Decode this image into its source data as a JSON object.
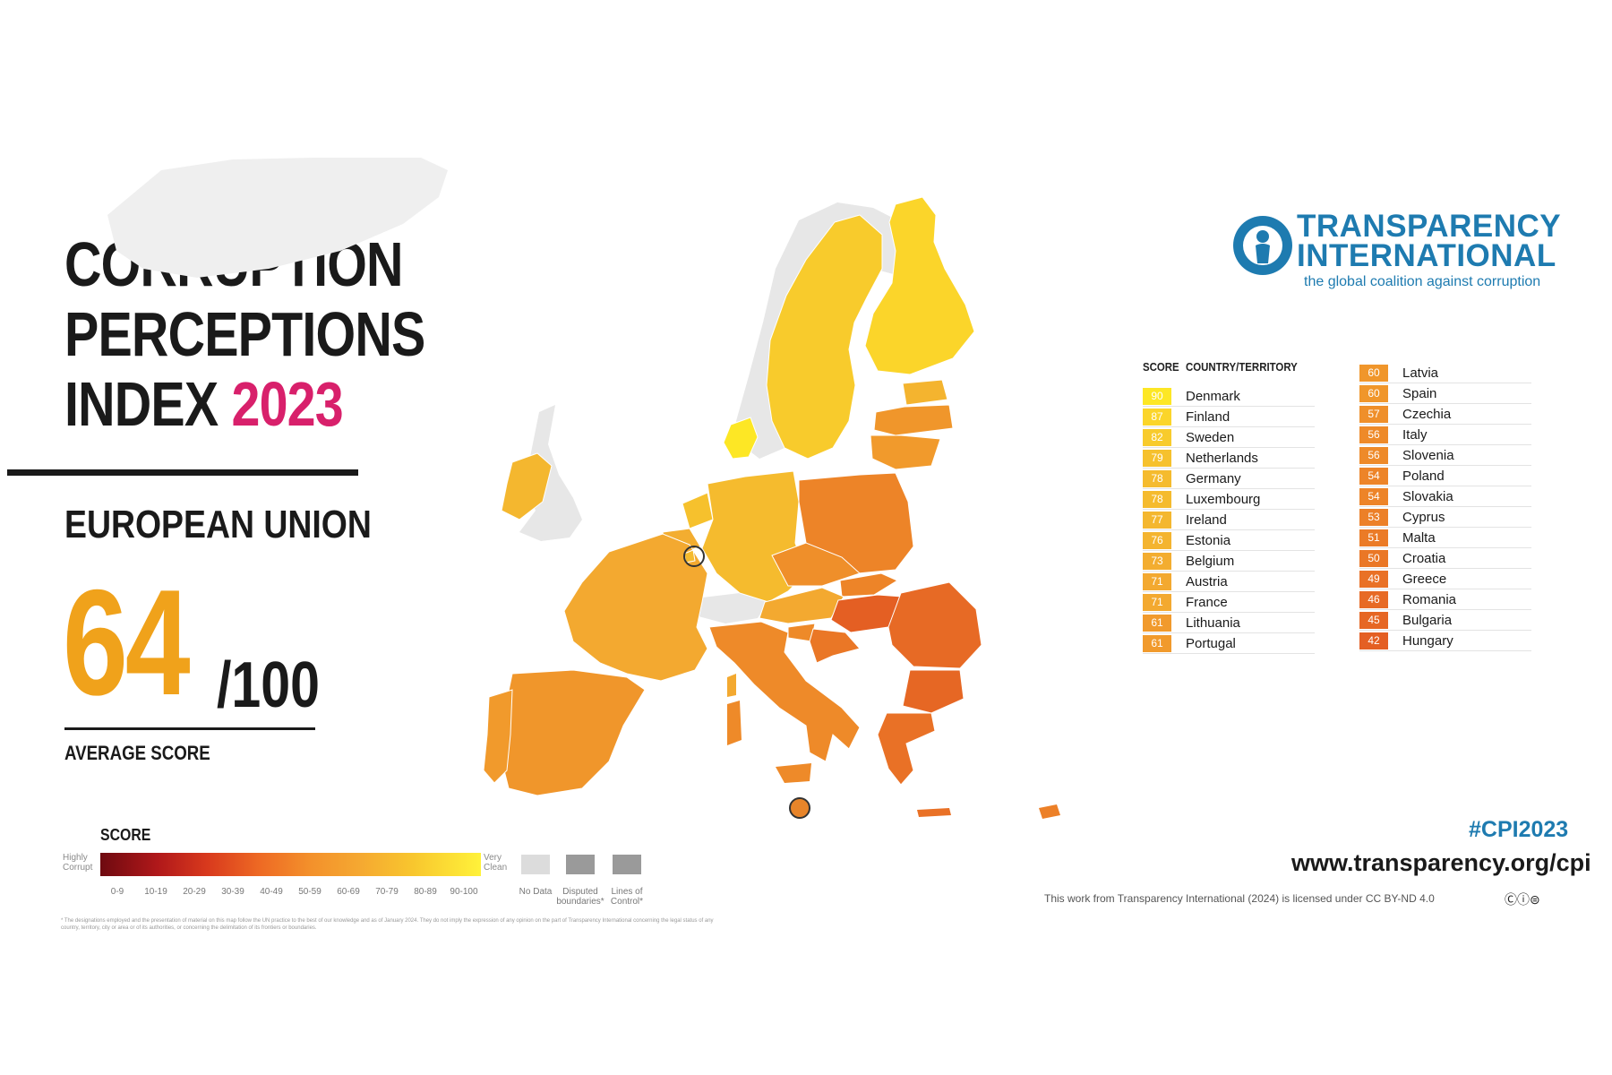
{
  "title": {
    "line1": "CORRUPTION",
    "line2": "PERCEPTIONS",
    "line3_prefix": "INDEX ",
    "line3_year": "2023"
  },
  "region": "EUROPEAN UNION",
  "average": {
    "score": "64",
    "max": "/100",
    "label": "AVERAGE SCORE"
  },
  "legend": {
    "title": "SCORE",
    "low_label": "Highly Corrupt",
    "high_label": "Very Clean",
    "ticks": [
      "0-9",
      "10-19",
      "20-29",
      "30-39",
      "40-49",
      "50-59",
      "60-69",
      "70-79",
      "80-89",
      "90-100"
    ],
    "no_data": "No Data",
    "disputed": "Disputed boundaries*",
    "lines_of_control": "Lines of Control*"
  },
  "brand": {
    "line1": "TRANSPARENCY",
    "line2": "INTERNATIONAL",
    "tagline": "the global coalition against corruption"
  },
  "table": {
    "header_score": "SCORE",
    "header_country": "COUNTRY/TERRITORY",
    "rows": [
      {
        "score": "90",
        "country": "Denmark",
        "color": "#fde725"
      },
      {
        "score": "87",
        "country": "Finland",
        "color": "#fbd52a"
      },
      {
        "score": "82",
        "country": "Sweden",
        "color": "#f8cb2c"
      },
      {
        "score": "79",
        "country": "Netherlands",
        "color": "#f6c12d"
      },
      {
        "score": "78",
        "country": "Germany",
        "color": "#f5bb2e"
      },
      {
        "score": "78",
        "country": "Luxembourg",
        "color": "#f5bb2e"
      },
      {
        "score": "77",
        "country": "Ireland",
        "color": "#f4b72f"
      },
      {
        "score": "76",
        "country": "Estonia",
        "color": "#f4b42f"
      },
      {
        "score": "73",
        "country": "Belgium",
        "color": "#f3ad30"
      },
      {
        "score": "71",
        "country": "Austria",
        "color": "#f3a930"
      },
      {
        "score": "71",
        "country": "France",
        "color": "#f3a930"
      },
      {
        "score": "61",
        "country": "Lithuania",
        "color": "#f19a2c"
      },
      {
        "score": "61",
        "country": "Portugal",
        "color": "#f19a2c"
      },
      {
        "score": "60",
        "country": "Latvia",
        "color": "#f0962b"
      },
      {
        "score": "60",
        "country": "Spain",
        "color": "#f0962b"
      },
      {
        "score": "57",
        "country": "Czechia",
        "color": "#ef8f2a"
      },
      {
        "score": "56",
        "country": "Italy",
        "color": "#ee8a29"
      },
      {
        "score": "56",
        "country": "Slovenia",
        "color": "#ee8a29"
      },
      {
        "score": "54",
        "country": "Poland",
        "color": "#ed8428"
      },
      {
        "score": "54",
        "country": "Slovakia",
        "color": "#ed8428"
      },
      {
        "score": "53",
        "country": "Cyprus",
        "color": "#ec8028"
      },
      {
        "score": "51",
        "country": "Malta",
        "color": "#eb7b27"
      },
      {
        "score": "50",
        "country": "Croatia",
        "color": "#ea7726"
      },
      {
        "score": "49",
        "country": "Greece",
        "color": "#e97126"
      },
      {
        "score": "46",
        "country": "Romania",
        "color": "#e76a25"
      },
      {
        "score": "45",
        "country": "Bulgaria",
        "color": "#e66724"
      },
      {
        "score": "42",
        "country": "Hungary",
        "color": "#e45f23"
      }
    ]
  },
  "footer": {
    "hashtag": "#CPI2023",
    "url": "www.transparency.org/cpi",
    "license": "This work from Transparency International (2024) is licensed under CC BY-ND 4.0",
    "cc_icons": "Ⓒⓘ⊜"
  },
  "footnote": "* The designations employed and the presentation of material on this map follow the UN practice to the best of our knowledge and as of January 2024. They do not imply the expression of any opinion on the part of Transparency International concerning the legal status of any country, territory, city or area or of its authorities, or concerning the delimitation of its frontiers or boundaries.",
  "colors": {
    "accent_pink": "#d8206b",
    "score_orange": "#f0a21b",
    "brand_blue": "#1e7bb0",
    "no_data_gray": "#d9d9d9"
  }
}
